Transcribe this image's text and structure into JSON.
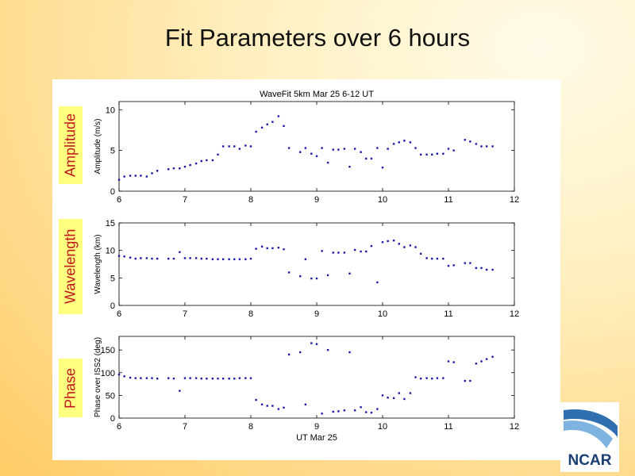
{
  "slide": {
    "title": "Fit Parameters over 6 hours",
    "labels": [
      "Amplitude",
      "Wavelength",
      "Phase"
    ],
    "logo_text": "NCAR"
  },
  "colors": {
    "marker": "#1a1aa6",
    "label_bg": "#ffff80",
    "label_text": "#c0161b"
  },
  "chart_data": [
    {
      "type": "scatter",
      "title": "WaveFit 5km Mar 25 6-12 UT",
      "xlabel": "",
      "ylabel": "Amplitude (m/s)",
      "xlim": [
        6,
        12
      ],
      "ylim": [
        0,
        11
      ],
      "xticks": [
        6,
        7,
        8,
        9,
        10,
        11,
        12
      ],
      "yticks": [
        0,
        5,
        10
      ],
      "x": [
        6.0,
        6.08,
        6.17,
        6.25,
        6.33,
        6.42,
        6.5,
        6.58,
        6.75,
        6.83,
        6.92,
        7.0,
        7.08,
        7.17,
        7.25,
        7.33,
        7.42,
        7.5,
        7.58,
        7.67,
        7.75,
        7.83,
        7.92,
        8.0,
        8.08,
        8.17,
        8.25,
        8.33,
        8.42,
        8.5,
        8.58,
        8.75,
        8.83,
        8.92,
        9.0,
        9.08,
        9.17,
        9.25,
        9.33,
        9.42,
        9.5,
        9.58,
        9.67,
        9.75,
        9.83,
        9.92,
        10.0,
        10.08,
        10.17,
        10.25,
        10.33,
        10.42,
        10.5,
        10.58,
        10.67,
        10.75,
        10.83,
        10.92,
        11.0,
        11.08,
        11.25,
        11.33,
        11.42,
        11.5,
        11.58,
        11.67
      ],
      "y": [
        1.4,
        1.8,
        1.9,
        1.9,
        1.9,
        1.8,
        2.2,
        2.5,
        2.7,
        2.8,
        2.8,
        3.0,
        3.2,
        3.4,
        3.7,
        3.8,
        3.8,
        4.5,
        5.5,
        5.5,
        5.5,
        5.2,
        5.6,
        5.5,
        7.3,
        7.8,
        8.2,
        8.5,
        9.2,
        8.0,
        5.3,
        4.8,
        5.3,
        4.6,
        4.3,
        5.3,
        3.5,
        5.1,
        5.1,
        5.2,
        3.0,
        5.2,
        4.8,
        4.0,
        4.0,
        5.3,
        2.9,
        5.2,
        5.8,
        6.0,
        6.2,
        6.0,
        5.3,
        4.5,
        4.5,
        4.5,
        4.6,
        4.6,
        5.2,
        5.0,
        6.3,
        6.1,
        5.8,
        5.5,
        5.5,
        5.5
      ]
    },
    {
      "type": "scatter",
      "title": "",
      "xlabel": "",
      "ylabel": "Wavelength (km)",
      "xlim": [
        6,
        12
      ],
      "ylim": [
        0,
        15
      ],
      "xticks": [
        6,
        7,
        8,
        9,
        10,
        11,
        12
      ],
      "yticks": [
        0,
        5,
        10,
        15
      ],
      "x": [
        6.0,
        6.08,
        6.17,
        6.25,
        6.33,
        6.42,
        6.5,
        6.58,
        6.75,
        6.83,
        6.92,
        7.0,
        7.08,
        7.17,
        7.25,
        7.33,
        7.42,
        7.5,
        7.58,
        7.67,
        7.75,
        7.83,
        7.92,
        8.0,
        8.08,
        8.17,
        8.25,
        8.33,
        8.42,
        8.5,
        8.58,
        8.75,
        8.83,
        8.92,
        9.0,
        9.08,
        9.17,
        9.25,
        9.33,
        9.42,
        9.5,
        9.58,
        9.67,
        9.75,
        9.83,
        9.92,
        10.0,
        10.08,
        10.17,
        10.25,
        10.33,
        10.42,
        10.5,
        10.58,
        10.67,
        10.75,
        10.83,
        10.92,
        11.0,
        11.08,
        11.25,
        11.33,
        11.42,
        11.5,
        11.58,
        11.67
      ],
      "y": [
        9.0,
        8.9,
        8.7,
        8.5,
        8.6,
        8.6,
        8.5,
        8.5,
        8.5,
        8.5,
        9.7,
        8.6,
        8.6,
        8.6,
        8.5,
        8.5,
        8.4,
        8.4,
        8.4,
        8.4,
        8.4,
        8.4,
        8.4,
        8.5,
        10.3,
        10.7,
        10.4,
        10.4,
        10.5,
        10.2,
        6.0,
        5.3,
        8.4,
        4.9,
        4.9,
        9.9,
        5.5,
        9.6,
        9.6,
        9.6,
        5.8,
        10.1,
        9.8,
        9.8,
        10.8,
        4.2,
        11.5,
        11.7,
        11.8,
        11.2,
        10.6,
        10.9,
        10.6,
        9.4,
        8.6,
        8.5,
        8.5,
        8.5,
        7.2,
        7.3,
        7.7,
        7.7,
        6.8,
        6.8,
        6.5,
        6.5
      ]
    },
    {
      "type": "scatter",
      "title": "",
      "xlabel": "UT Mar 25",
      "ylabel": "Phase over ISS2 (deg)",
      "xlim": [
        6,
        12
      ],
      "ylim": [
        0,
        180
      ],
      "xticks": [
        6,
        7,
        8,
        9,
        10,
        11,
        12
      ],
      "yticks": [
        0,
        50,
        100,
        150
      ],
      "x": [
        6.0,
        6.08,
        6.17,
        6.25,
        6.33,
        6.42,
        6.5,
        6.58,
        6.75,
        6.83,
        6.92,
        7.0,
        7.08,
        7.17,
        7.25,
        7.33,
        7.42,
        7.5,
        7.58,
        7.67,
        7.75,
        7.83,
        7.92,
        8.0,
        8.08,
        8.17,
        8.25,
        8.33,
        8.42,
        8.5,
        8.58,
        8.75,
        8.83,
        8.92,
        9.0,
        9.08,
        9.17,
        9.25,
        9.33,
        9.42,
        9.5,
        9.58,
        9.67,
        9.75,
        9.83,
        9.92,
        10.0,
        10.08,
        10.17,
        10.25,
        10.33,
        10.42,
        10.5,
        10.58,
        10.67,
        10.75,
        10.83,
        10.92,
        11.0,
        11.08,
        11.25,
        11.33,
        11.42,
        11.5,
        11.58,
        11.67
      ],
      "y": [
        96,
        92,
        89,
        88,
        88,
        88,
        88,
        87,
        88,
        87,
        60,
        88,
        88,
        88,
        87,
        87,
        87,
        87,
        87,
        87,
        87,
        88,
        88,
        88,
        40,
        30,
        27,
        27,
        20,
        23,
        140,
        145,
        30,
        165,
        163,
        10,
        150,
        14,
        15,
        17,
        145,
        17,
        24,
        13,
        12,
        20,
        50,
        45,
        44,
        55,
        42,
        55,
        90,
        87,
        88,
        87,
        88,
        88,
        125,
        123,
        82,
        82,
        120,
        125,
        130,
        135
      ]
    }
  ]
}
